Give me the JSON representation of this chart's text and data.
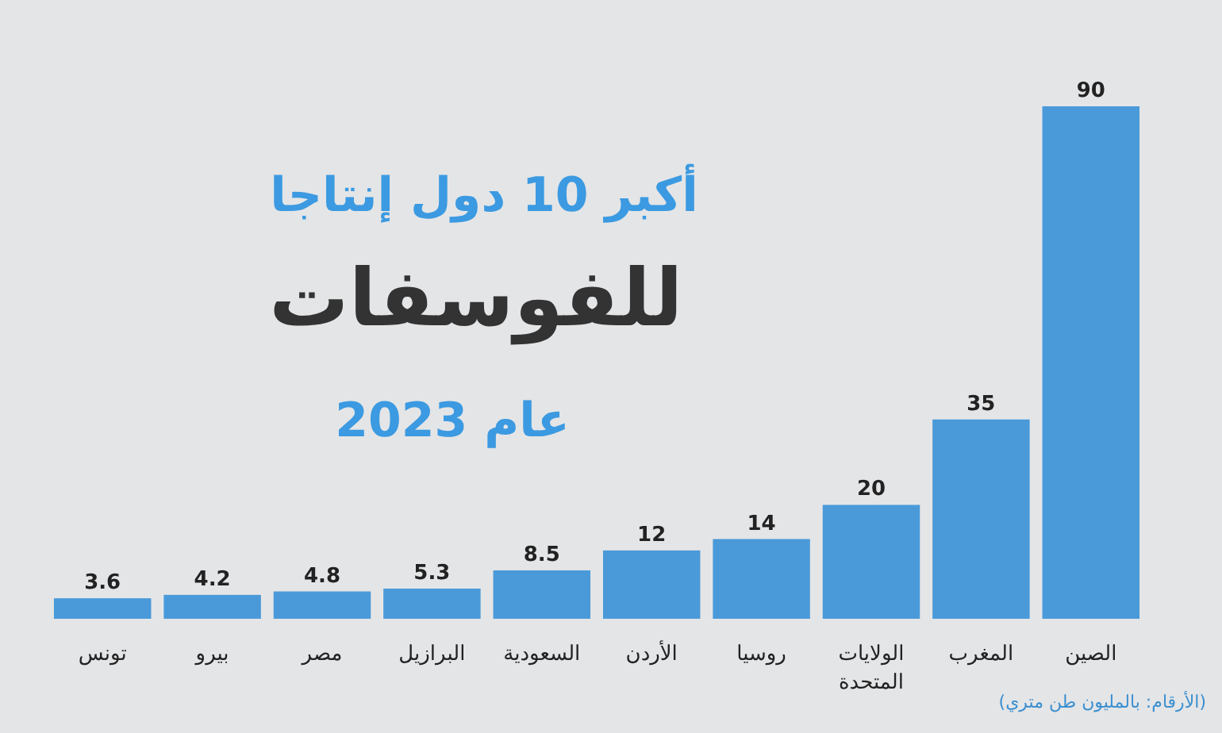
{
  "chart_data": {
    "type": "bar",
    "title": "أكبر 10 دول إنتاجا للفوسفات",
    "subtitle": "عام 2023",
    "categories": [
      "تونس",
      "بيرو",
      "مصر",
      "البرازيل",
      "السعودية",
      "الأردن",
      "روسيا",
      "الولايات المتحدة",
      "المغرب",
      "الصين"
    ],
    "values": [
      3.6,
      4.2,
      4.8,
      5.3,
      8.5,
      12,
      14,
      20,
      35,
      90
    ],
    "color": "#4a9ad9",
    "data_labels": true,
    "annotations": [
      "(الأرقام: بالمليون طن متري)"
    ]
  }
}
